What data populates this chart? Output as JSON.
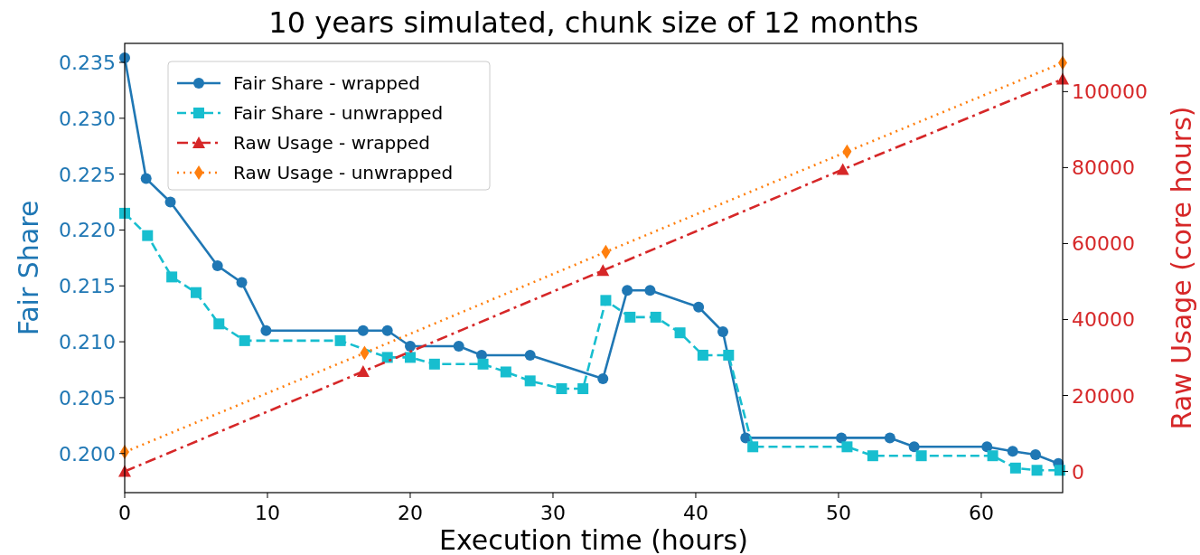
{
  "chart_data": {
    "type": "line",
    "title": "10 years simulated, chunk size of 12 months",
    "xlabel": "Execution time (hours)",
    "ylabel": "Fair Share",
    "y2label": "Raw Usage (core hours)",
    "xlim": [
      0,
      65.7
    ],
    "xticks": [
      0,
      10,
      20,
      30,
      40,
      50,
      60
    ],
    "ylim": [
      0.1965,
      0.2367
    ],
    "yticks": [
      {
        "value": 0.2,
        "label": "0.200"
      },
      {
        "value": 0.205,
        "label": "0.205"
      },
      {
        "value": 0.21,
        "label": "0.210"
      },
      {
        "value": 0.215,
        "label": "0.215"
      },
      {
        "value": 0.22,
        "label": "0.220"
      },
      {
        "value": 0.225,
        "label": "0.225"
      },
      {
        "value": 0.23,
        "label": "0.230"
      },
      {
        "value": 0.235,
        "label": "0.235"
      }
    ],
    "y2lim": [
      -5580,
      112700
    ],
    "y2ticks": [
      0,
      20000,
      40000,
      60000,
      80000,
      100000
    ],
    "legend": "top left",
    "grid": false,
    "series": [
      {
        "name": "Fair Share - wrapped",
        "color": "#1f77b4",
        "marker": "circle",
        "line_style": "solid",
        "x": [
          0,
          1.5,
          3.2,
          6.5,
          8.2,
          9.9,
          16.7,
          18.4,
          20.0,
          23.4,
          25.0,
          28.4,
          33.5,
          35.2,
          36.8,
          40.2,
          41.9,
          43.5,
          50.2,
          53.6,
          55.3,
          60.4,
          62.2,
          63.8,
          65.4
        ],
        "values": [
          0.2354,
          0.2246,
          0.2225,
          0.2168,
          0.2153,
          0.211,
          0.211,
          0.211,
          0.2096,
          0.2096,
          0.2088,
          0.2088,
          0.2067,
          0.2146,
          0.2146,
          0.2131,
          0.2109,
          0.2014,
          0.2014,
          0.2014,
          0.2006,
          0.2006,
          0.2002,
          0.1999,
          0.1991
        ]
      },
      {
        "name": "Fair Share - unwrapped",
        "color": "#17becf",
        "marker": "square",
        "line_style": "dashed",
        "x": [
          0,
          1.6,
          3.3,
          5.0,
          6.6,
          8.4,
          15.1,
          18.4,
          20.0,
          21.7,
          25.1,
          26.7,
          28.4,
          30.6,
          32.1,
          33.7,
          35.4,
          37.2,
          38.9,
          40.5,
          42.3,
          44.0,
          50.6,
          52.4,
          55.8,
          60.8,
          62.4,
          63.9,
          65.5
        ],
        "values": [
          0.2215,
          0.2195,
          0.2158,
          0.2144,
          0.2116,
          0.2101,
          0.2101,
          0.2086,
          0.2086,
          0.208,
          0.208,
          0.2073,
          0.2065,
          0.2058,
          0.2058,
          0.2137,
          0.2122,
          0.2122,
          0.2108,
          0.2088,
          0.2088,
          0.2006,
          0.2006,
          0.1998,
          0.1998,
          0.1998,
          0.1987,
          0.1985,
          0.1985
        ]
      },
      {
        "name": "Raw Usage - wrapped",
        "color": "#d62728",
        "marker": "triangle",
        "line_style": "dashdot",
        "axis": "y2",
        "x": [
          0,
          16.7,
          33.5,
          50.3,
          65.7
        ],
        "values": [
          0,
          26300,
          52900,
          79500,
          103300
        ]
      },
      {
        "name": "Raw Usage - unwrapped",
        "color": "#ff7f0e",
        "marker": "diamond",
        "line_style": "dotted",
        "axis": "y2",
        "x": [
          0,
          16.8,
          33.7,
          50.6,
          65.7
        ],
        "values": [
          5100,
          31200,
          57800,
          84200,
          107600
        ]
      }
    ]
  }
}
